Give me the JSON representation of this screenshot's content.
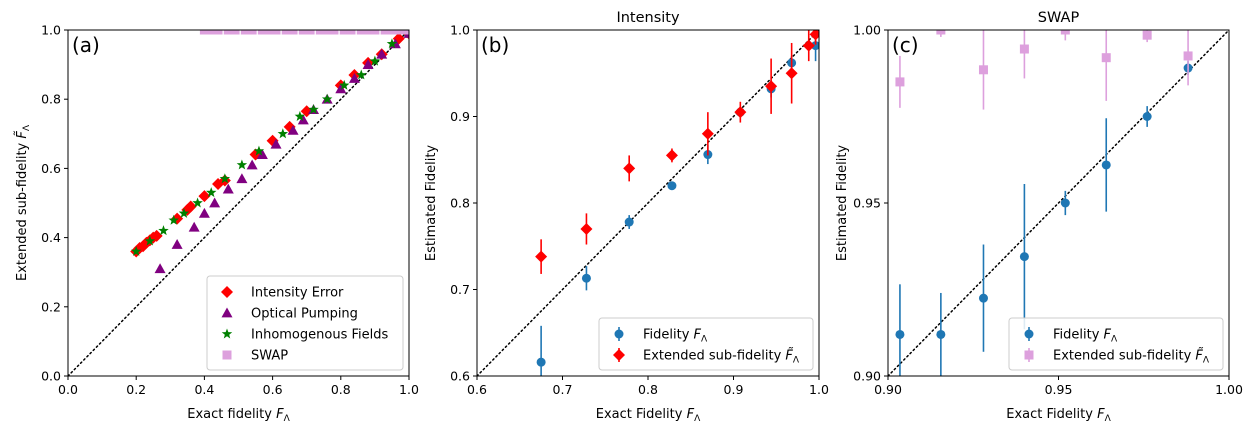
{
  "chart_data": [
    {
      "type": "scatter",
      "panel_label": "(a)",
      "title": "",
      "xlabel": "Exact fidelity",
      "xlabel_sym": "F",
      "xlabel_sub": "Λ",
      "ylabel": "Extended sub-fidelity",
      "ylabel_sym": "F̃",
      "ylabel_sub": "Λ",
      "xlim": [
        0,
        1
      ],
      "ylim": [
        0,
        1
      ],
      "xticks": [
        0,
        0.2,
        0.4,
        0.6,
        0.8,
        1.0
      ],
      "xtick_labels": [
        "0.0",
        "0.2",
        "0.4",
        "0.6",
        "0.8",
        "1.0"
      ],
      "yticks": [
        0,
        0.2,
        0.4,
        0.6,
        0.8,
        1.0
      ],
      "ytick_labels": [
        "0.0",
        "0.2",
        "0.4",
        "0.6",
        "0.8",
        "1.0"
      ],
      "legend_position": "lower-right",
      "diagonal": true,
      "series": [
        {
          "name": "Intensity Error",
          "marker": "diamond",
          "color": "#ff0000",
          "x": [
            0.2,
            0.21,
            0.22,
            0.23,
            0.24,
            0.25,
            0.26,
            0.32,
            0.35,
            0.36,
            0.4,
            0.44,
            0.46,
            0.55,
            0.6,
            0.65,
            0.7,
            0.8,
            0.84,
            0.88,
            0.92,
            0.97,
            1.0
          ],
          "y": [
            0.36,
            0.37,
            0.375,
            0.385,
            0.392,
            0.4,
            0.405,
            0.455,
            0.48,
            0.49,
            0.52,
            0.555,
            0.565,
            0.64,
            0.68,
            0.72,
            0.765,
            0.84,
            0.87,
            0.905,
            0.93,
            0.975,
            0.99
          ]
        },
        {
          "name": "Optical Pumping",
          "marker": "triangle",
          "color": "#800080",
          "x": [
            0.27,
            0.32,
            0.37,
            0.4,
            0.43,
            0.47,
            0.51,
            0.54,
            0.57,
            0.61,
            0.66,
            0.69,
            0.72,
            0.76,
            0.8,
            0.84,
            0.88,
            0.92,
            0.96,
            1.0
          ],
          "y": [
            0.31,
            0.38,
            0.43,
            0.47,
            0.5,
            0.54,
            0.57,
            0.61,
            0.64,
            0.67,
            0.71,
            0.74,
            0.77,
            0.8,
            0.83,
            0.86,
            0.9,
            0.93,
            0.96,
            0.99
          ]
        },
        {
          "name": "Inhomogenous Fields",
          "marker": "star",
          "color": "#008000",
          "x": [
            0.2,
            0.24,
            0.28,
            0.31,
            0.34,
            0.38,
            0.42,
            0.46,
            0.51,
            0.56,
            0.63,
            0.68,
            0.72,
            0.76,
            0.81,
            0.86,
            0.9,
            0.95
          ],
          "y": [
            0.36,
            0.39,
            0.42,
            0.45,
            0.47,
            0.5,
            0.53,
            0.57,
            0.61,
            0.65,
            0.7,
            0.75,
            0.77,
            0.8,
            0.84,
            0.87,
            0.91,
            0.96
          ]
        },
        {
          "name": "SWAP",
          "marker": "square",
          "color": "#dda0dd",
          "x": [
            0.4,
            0.42,
            0.44,
            0.47,
            0.49,
            0.52,
            0.54,
            0.57,
            0.59,
            0.61,
            0.64,
            0.66,
            0.69,
            0.71,
            0.74,
            0.76,
            0.78,
            0.81,
            0.83,
            0.86,
            0.88,
            0.9,
            0.93,
            0.95,
            0.97,
            0.99
          ],
          "y": [
            1,
            1,
            1,
            1,
            1,
            1,
            1,
            1,
            1,
            1,
            1,
            1,
            1,
            1,
            1,
            1,
            1,
            1,
            1,
            1,
            1,
            1,
            1,
            1,
            1,
            1
          ]
        }
      ]
    },
    {
      "type": "scatter",
      "panel_label": "(b)",
      "title": "Intensity",
      "xlabel": "Exact Fidelity",
      "xlabel_sym": "F",
      "xlabel_sub": "Λ",
      "ylabel": "Estimated Fidelity",
      "ylabel_sym": "",
      "ylabel_sub": "",
      "xlim": [
        0.6,
        1.0
      ],
      "ylim": [
        0.6,
        1.0
      ],
      "xticks": [
        0.6,
        0.7,
        0.8,
        0.9,
        1.0
      ],
      "xtick_labels": [
        "0.6",
        "0.7",
        "0.8",
        "0.9",
        "1.0"
      ],
      "yticks": [
        0.6,
        0.7,
        0.8,
        0.9,
        1.0
      ],
      "ytick_labels": [
        "0.6",
        "0.7",
        "0.8",
        "0.9",
        "1.0"
      ],
      "legend_position": "lower-right",
      "diagonal": true,
      "series": [
        {
          "name": "Fidelity",
          "legend_sym": "F",
          "legend_sub": "Λ",
          "marker": "circle",
          "color": "#1f77b4",
          "x": [
            0.675,
            0.728,
            0.778,
            0.828,
            0.87,
            0.908,
            0.944,
            0.968,
            0.996
          ],
          "y": [
            0.616,
            0.713,
            0.778,
            0.82,
            0.856,
            0.905,
            0.932,
            0.962,
            0.982
          ],
          "err": [
            0.042,
            0.014,
            0.008,
            0.004,
            0.011,
            0.006,
            0.01,
            0.008,
            0.018
          ]
        },
        {
          "name": "Extended sub-fidelity",
          "legend_sym": "F̃",
          "legend_sub": "Λ",
          "marker": "diamond",
          "color": "#ff0000",
          "x": [
            0.675,
            0.728,
            0.778,
            0.828,
            0.87,
            0.908,
            0.944,
            0.968,
            0.988,
            0.996
          ],
          "y": [
            0.738,
            0.77,
            0.84,
            0.855,
            0.88,
            0.905,
            0.935,
            0.95,
            0.982,
            0.995
          ],
          "err": [
            0.02,
            0.018,
            0.015,
            0.008,
            0.025,
            0.012,
            0.032,
            0.035,
            0.018,
            0.012
          ]
        }
      ]
    },
    {
      "type": "scatter",
      "panel_label": "(c)",
      "title": "SWAP",
      "xlabel": "Exact Fidelity",
      "xlabel_sym": "F",
      "xlabel_sub": "Λ",
      "ylabel": "Estimated Fidelity",
      "ylabel_sym": "",
      "ylabel_sub": "",
      "xlim": [
        0.9,
        1.0
      ],
      "ylim": [
        0.9,
        1.0
      ],
      "xticks": [
        0.9,
        0.95,
        1.0
      ],
      "xtick_labels": [
        "0.90",
        "0.95",
        "1.00"
      ],
      "yticks": [
        0.9,
        0.95,
        1.0
      ],
      "ytick_labels": [
        "0.90",
        "0.95",
        "1.00"
      ],
      "legend_position": "lower-right",
      "diagonal": true,
      "series": [
        {
          "name": "Fidelity",
          "legend_sym": "F",
          "legend_sub": "Λ",
          "marker": "circle",
          "color": "#1f77b4",
          "x": [
            0.9035,
            0.9155,
            0.928,
            0.94,
            0.952,
            0.964,
            0.976,
            0.988
          ],
          "y": [
            0.912,
            0.912,
            0.9225,
            0.9345,
            0.95,
            0.961,
            0.975,
            0.989
          ],
          "err": [
            0.0145,
            0.012,
            0.0155,
            0.021,
            0.0035,
            0.0135,
            0.003,
            0.002
          ]
        },
        {
          "name": "Extended sub-fidelity",
          "legend_sym": "F̃",
          "legend_sub": "Λ",
          "marker": "square",
          "color": "#dda0dd",
          "x": [
            0.9035,
            0.9155,
            0.928,
            0.94,
            0.952,
            0.964,
            0.976,
            0.988
          ],
          "y": [
            0.985,
            1.0,
            0.9885,
            0.9945,
            1.0,
            0.992,
            0.9985,
            0.9925
          ],
          "err": [
            0.0075,
            0.002,
            0.0115,
            0.0085,
            0.003,
            0.0125,
            0.002,
            0.0085
          ]
        }
      ]
    }
  ]
}
